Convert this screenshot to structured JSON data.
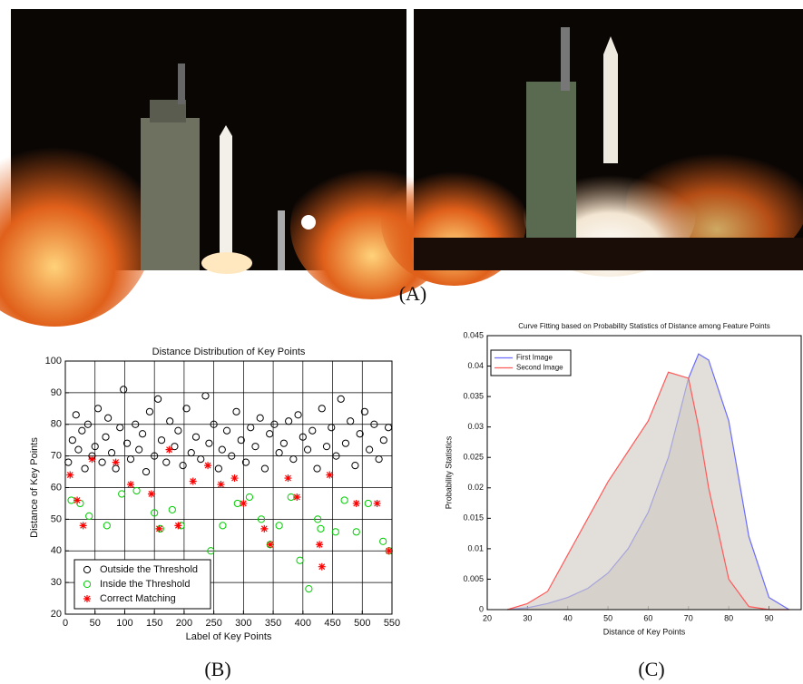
{
  "captions": [
    "(A)",
    "(B)",
    "(C)"
  ],
  "chart_data": [
    {
      "type": "scatter",
      "title": "Distance Distribution of Key Points",
      "x_label": "Label of Key Points",
      "y_label": "Distance of Key Points",
      "xlim": [
        0,
        550
      ],
      "ylim": [
        20,
        100
      ],
      "xticks": [
        0,
        50,
        100,
        150,
        200,
        250,
        300,
        350,
        400,
        450,
        500,
        550
      ],
      "yticks": [
        20,
        30,
        40,
        50,
        60,
        70,
        80,
        90,
        100
      ],
      "grid": true,
      "legend": "lower-left",
      "series": [
        {
          "name": "Outside the Threshold",
          "color": "#000000",
          "marker": "circle",
          "x": [
            5,
            12,
            18,
            22,
            28,
            33,
            38,
            45,
            50,
            55,
            62,
            68,
            72,
            78,
            85,
            92,
            98,
            104,
            110,
            118,
            124,
            130,
            136,
            142,
            150,
            156,
            162,
            170,
            176,
            184,
            190,
            198,
            204,
            212,
            220,
            228,
            236,
            242,
            250,
            258,
            264,
            272,
            280,
            288,
            296,
            304,
            312,
            320,
            328,
            336,
            344,
            352,
            360,
            368,
            376,
            384,
            392,
            400,
            408,
            416,
            424,
            432,
            440,
            448,
            456,
            464,
            472,
            480,
            488,
            496,
            504,
            512,
            520,
            528,
            536,
            544
          ],
          "values": [
            68,
            75,
            83,
            72,
            78,
            66,
            80,
            70,
            73,
            85,
            68,
            76,
            82,
            71,
            66,
            79,
            91,
            74,
            69,
            80,
            72,
            77,
            65,
            84,
            70,
            88,
            75,
            68,
            81,
            73,
            78,
            67,
            85,
            71,
            76,
            69,
            89,
            74,
            80,
            66,
            72,
            78,
            70,
            84,
            75,
            68,
            79,
            73,
            82,
            66,
            77,
            80,
            71,
            74,
            81,
            69,
            83,
            76,
            72,
            78,
            66,
            85,
            73,
            79,
            70,
            88,
            74,
            81,
            67,
            77,
            84,
            72,
            80,
            69,
            75,
            79
          ]
        },
        {
          "name": "Inside the Threshold",
          "color": "#00cc00",
          "marker": "circle",
          "x": [
            10,
            25,
            40,
            70,
            95,
            120,
            150,
            160,
            180,
            195,
            245,
            265,
            290,
            310,
            330,
            345,
            360,
            380,
            395,
            410,
            425,
            430,
            455,
            470,
            490,
            510,
            535,
            545
          ],
          "values": [
            56,
            55,
            51,
            48,
            58,
            59,
            52,
            47,
            53,
            48,
            40,
            48,
            55,
            57,
            50,
            42,
            48,
            57,
            37,
            28,
            50,
            47,
            46,
            56,
            46,
            55,
            43,
            40
          ]
        },
        {
          "name": "Correct Matching",
          "color": "#ff0000",
          "marker": "star",
          "x": [
            8,
            20,
            30,
            45,
            85,
            110,
            145,
            158,
            175,
            190,
            215,
            240,
            262,
            285,
            300,
            335,
            345,
            375,
            390,
            428,
            432,
            445,
            490,
            525,
            545
          ],
          "values": [
            64,
            56,
            48,
            69,
            68,
            61,
            58,
            47,
            72,
            48,
            62,
            67,
            61,
            63,
            55,
            47,
            42,
            63,
            57,
            42,
            35,
            64,
            55,
            55,
            40
          ]
        }
      ]
    },
    {
      "type": "line",
      "title": "Curve Fitting based on Probability Statistics of Distance among Feature Points",
      "x_label": "Distance of Key Points",
      "y_label": "Probability Statistics",
      "xlim": [
        20,
        98
      ],
      "ylim": [
        0,
        0.045
      ],
      "xticks": [
        20,
        30,
        40,
        50,
        60,
        70,
        80,
        90
      ],
      "yticks": [
        0,
        0.005,
        0.01,
        0.015,
        0.02,
        0.025,
        0.03,
        0.035,
        0.04,
        0.045
      ],
      "grid": false,
      "legend": "upper-left",
      "area_color": "#cfcac2",
      "x": [
        25,
        30,
        35,
        40,
        45,
        50,
        55,
        60,
        65,
        70,
        72.5,
        75,
        80,
        85,
        90,
        95
      ],
      "series": [
        {
          "name": "First Image",
          "color": "#6b6bff",
          "values": [
            0,
            0.0003,
            0.001,
            0.002,
            0.0035,
            0.006,
            0.01,
            0.016,
            0.025,
            0.038,
            0.042,
            0.041,
            0.031,
            0.012,
            0.002,
            0
          ]
        },
        {
          "name": "Second Image",
          "color": "#ff5a5a",
          "values": [
            0,
            0.001,
            0.003,
            0.009,
            0.015,
            0.021,
            0.026,
            0.031,
            0.039,
            0.038,
            0.03,
            0.02,
            0.005,
            0.0005,
            0,
            0
          ]
        }
      ]
    }
  ]
}
